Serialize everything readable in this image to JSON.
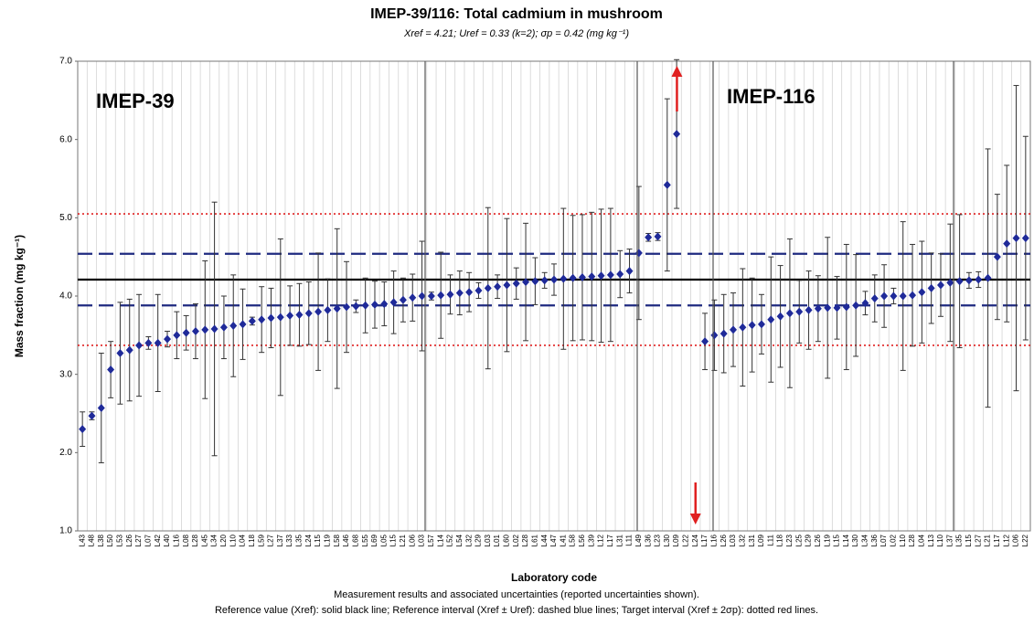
{
  "chart_data": {
    "type": "errorbar",
    "title": "IMEP-39/116: Total cadmium in mushroom",
    "subtitle": "Xref = 4.21; Uref = 0.33 (k=2); σp = 0.42 (mg kg⁻¹)",
    "y_label": "Mass fraction (mg kg⁻¹)",
    "x_label": "Laboratory code",
    "footnotes": [
      "Measurement results and associated uncertainties (reported uncertainties shown).",
      "Reference value (Xref): solid black line; Reference interval (Xref ± Uref): dashed blue lines; Target interval (Xref ± 2σp): dotted red lines."
    ],
    "annotations": [
      "IMEP-39",
      "IMEP-116"
    ],
    "categories": [
      "L43",
      "L48",
      "L38",
      "L50",
      "L53",
      "L26",
      "L27",
      "L07",
      "L42",
      "L40",
      "L16",
      "L08",
      "L28",
      "L45",
      "L34",
      "L20",
      "L10",
      "L04",
      "L18",
      "L59",
      "L27",
      "L37",
      "L33",
      "L35",
      "L24",
      "L15",
      "L19",
      "L58",
      "L46",
      "L68",
      "L55",
      "L69",
      "L05",
      "L15",
      "L21",
      "L06",
      "L03",
      "L57",
      "L14",
      "L52",
      "L54",
      "L32",
      "L29",
      "L03",
      "L01",
      "L60",
      "L02",
      "L28",
      "L61",
      "L44",
      "L47",
      "L41",
      "L58",
      "L56",
      "L39",
      "L12",
      "L17",
      "L31",
      "L11",
      "L49",
      "L36",
      "L23",
      "L30",
      "L09",
      "L22",
      "L24",
      "L17",
      "L16",
      "L26",
      "L03",
      "L32",
      "L31",
      "L09",
      "L11",
      "L18",
      "L23",
      "L25",
      "L29",
      "L26",
      "L19",
      "L15",
      "L14",
      "L30",
      "L34",
      "L36",
      "L07",
      "L02",
      "L10",
      "L28",
      "L04",
      "L13",
      "L10",
      "L37",
      "L35",
      "L15",
      "L27",
      "L21",
      "L17",
      "L12",
      "L06",
      "L22"
    ],
    "values": [
      2.3,
      2.47,
      2.57,
      3.06,
      3.27,
      3.31,
      3.37,
      3.4,
      3.4,
      3.45,
      3.5,
      3.53,
      3.55,
      3.57,
      3.58,
      3.6,
      3.62,
      3.64,
      3.68,
      3.7,
      3.72,
      3.73,
      3.75,
      3.76,
      3.78,
      3.8,
      3.82,
      3.84,
      3.86,
      3.87,
      3.88,
      3.89,
      3.9,
      3.92,
      3.95,
      3.98,
      4.0,
      4.0,
      4.01,
      4.02,
      4.04,
      4.05,
      4.07,
      4.1,
      4.12,
      4.14,
      4.16,
      4.18,
      4.19,
      4.2,
      4.21,
      4.22,
      4.23,
      4.24,
      4.25,
      4.26,
      4.27,
      4.28,
      4.32,
      4.55,
      4.75,
      4.76,
      5.42,
      6.07,
      null,
      null,
      3.42,
      3.5,
      3.52,
      3.57,
      3.6,
      3.63,
      3.64,
      3.7,
      3.74,
      3.78,
      3.8,
      3.82,
      3.84,
      3.85,
      3.85,
      3.86,
      3.88,
      3.91,
      3.97,
      4.0,
      4.0,
      4.0,
      4.01,
      4.05,
      4.1,
      4.14,
      4.17,
      4.19,
      4.2,
      4.21,
      4.23,
      4.5,
      4.67,
      4.74,
      4.74
    ],
    "errors": [
      0.22,
      0.05,
      0.7,
      0.36,
      0.65,
      0.65,
      0.65,
      0.08,
      0.62,
      0.1,
      0.3,
      0.22,
      0.35,
      0.88,
      1.62,
      0.4,
      0.65,
      0.45,
      0.05,
      0.42,
      0.38,
      1.0,
      0.38,
      0.4,
      0.4,
      0.75,
      0.4,
      1.02,
      0.58,
      0.08,
      0.35,
      0.3,
      0.28,
      0.4,
      0.28,
      0.3,
      0.7,
      0.05,
      0.55,
      0.25,
      0.28,
      0.25,
      0.1,
      1.03,
      0.15,
      0.85,
      0.2,
      0.75,
      0.3,
      0.1,
      0.2,
      0.9,
      0.8,
      0.8,
      0.82,
      0.85,
      0.85,
      0.3,
      0.28,
      0.85,
      0.05,
      0.05,
      1.1,
      0.95,
      null,
      null,
      0.36,
      0.45,
      0.5,
      0.47,
      0.75,
      0.6,
      0.38,
      0.8,
      0.65,
      0.95,
      0.4,
      0.5,
      0.42,
      0.9,
      0.4,
      0.8,
      0.65,
      0.15,
      0.3,
      0.4,
      0.1,
      0.95,
      0.65,
      0.65,
      0.45,
      0.4,
      0.75,
      0.85,
      0.1,
      0.1,
      1.65,
      0.8,
      1.0,
      1.95,
      1.3
    ],
    "color": "#1f2a99",
    "reference_lines": [
      {
        "value": 4.21,
        "color": "#000000",
        "style": "solid"
      },
      {
        "value": 3.88,
        "color": "#1f2a80",
        "style": "dashed"
      },
      {
        "value": 4.54,
        "color": "#1f2a80",
        "style": "dashed"
      },
      {
        "value": 3.37,
        "color": "#e02020",
        "style": "dotted"
      },
      {
        "value": 5.05,
        "color": "#e02020",
        "style": "dotted"
      }
    ],
    "ylim": [
      1,
      7
    ],
    "yticks": [
      {
        "value": 1,
        "label": "1.0"
      },
      {
        "value": 2,
        "label": "2.0"
      },
      {
        "value": 3,
        "label": "3.0"
      },
      {
        "value": 4,
        "label": "4.0"
      },
      {
        "value": 5,
        "label": "5.0"
      },
      {
        "value": 6,
        "label": "6.0"
      },
      {
        "value": 7,
        "label": "7.0"
      }
    ],
    "grid": true
  }
}
